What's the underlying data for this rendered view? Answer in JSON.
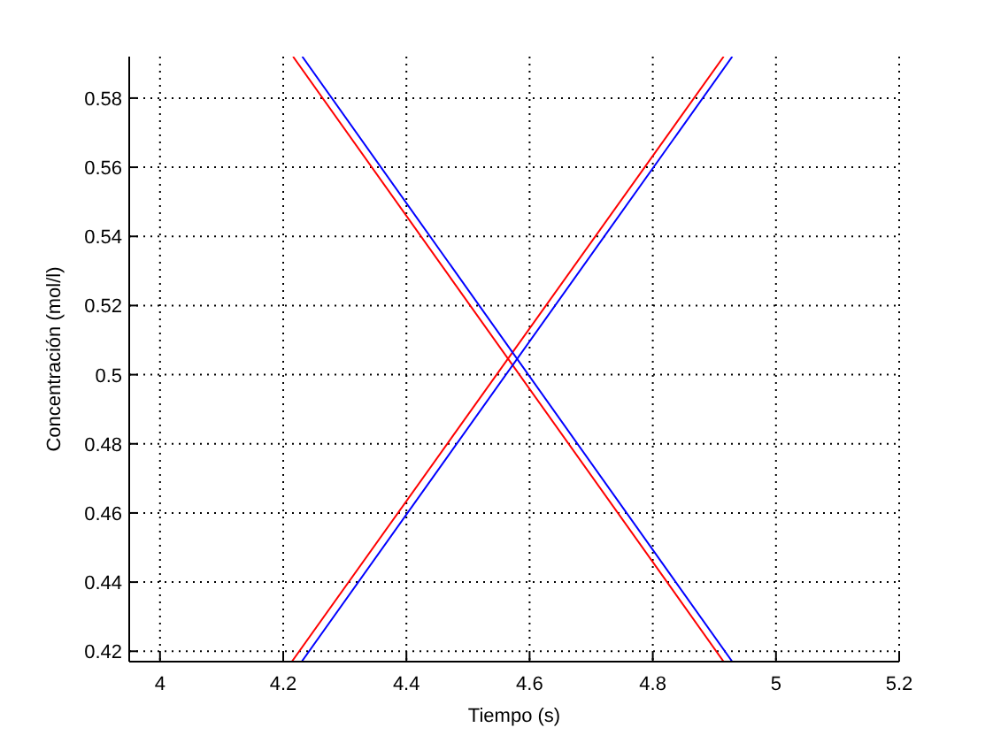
{
  "chart_data": {
    "type": "line",
    "xlabel": "Tiempo (s)",
    "ylabel": "Concentración (mol/l)",
    "xlim": [
      3.95,
      5.2
    ],
    "ylim": [
      0.417,
      0.592
    ],
    "xticks": [
      4,
      4.2,
      4.4,
      4.6,
      4.8,
      5,
      5.2
    ],
    "yticks": [
      0.42,
      0.44,
      0.46,
      0.48,
      0.5,
      0.52,
      0.54,
      0.56,
      0.58
    ],
    "grid": true,
    "line_style": "solid",
    "marker": "none",
    "series": [
      {
        "color": "#ff0000",
        "x": [
          4.216,
          4.915
        ],
        "values": [
          0.592,
          0.417
        ]
      },
      {
        "color": "#ff0000",
        "x": [
          4.214,
          4.915
        ],
        "values": [
          0.417,
          0.592
        ]
      },
      {
        "color": "#0000ff",
        "x": [
          4.231,
          4.929
        ],
        "values": [
          0.592,
          0.417
        ]
      },
      {
        "color": "#0000ff",
        "x": [
          4.23,
          4.929
        ],
        "values": [
          0.417,
          0.592
        ]
      }
    ]
  }
}
